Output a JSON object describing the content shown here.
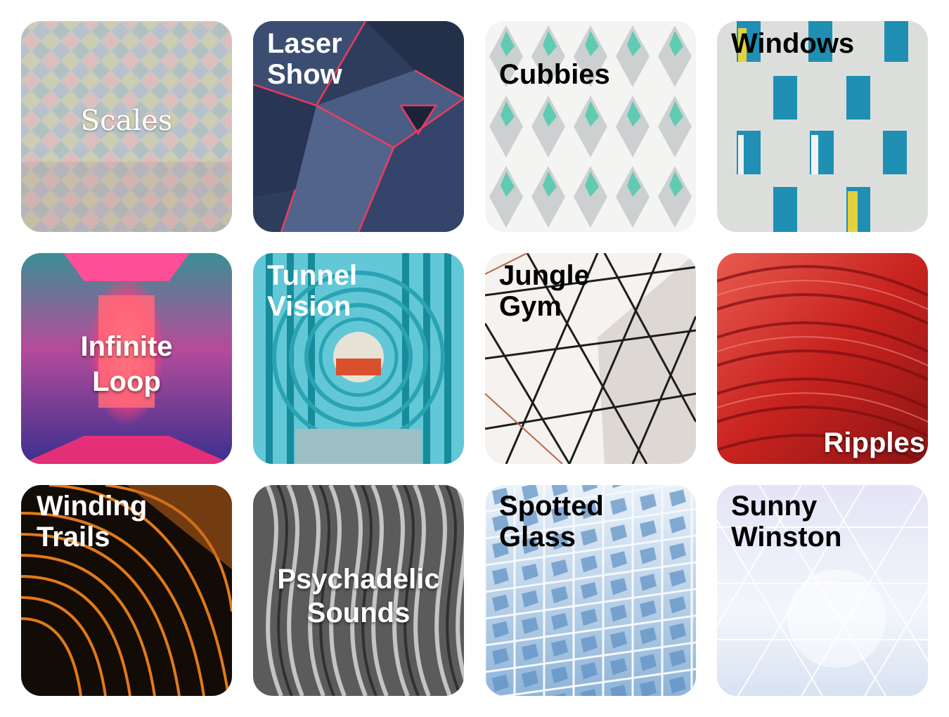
{
  "tiles": [
    {
      "id": "scales",
      "label": "Scales"
    },
    {
      "id": "laser-show",
      "label": "Laser\nShow"
    },
    {
      "id": "cubbies",
      "label": "Cubbies"
    },
    {
      "id": "windows",
      "label": "Windows"
    },
    {
      "id": "infinite-loop",
      "label": "Infinite\nLoop"
    },
    {
      "id": "tunnel-vision",
      "label": "Tunnel\nVision"
    },
    {
      "id": "jungle-gym",
      "label": "Jungle\nGym"
    },
    {
      "id": "ripples",
      "label": "Ripples"
    },
    {
      "id": "winding-trails",
      "label": "Winding\nTrails"
    },
    {
      "id": "psychadelic-sounds",
      "label": "Psychadelic\nSounds"
    },
    {
      "id": "spotted-glass",
      "label": "Spotted\nGlass"
    },
    {
      "id": "sunny-winston",
      "label": "Sunny\nWinston"
    }
  ]
}
